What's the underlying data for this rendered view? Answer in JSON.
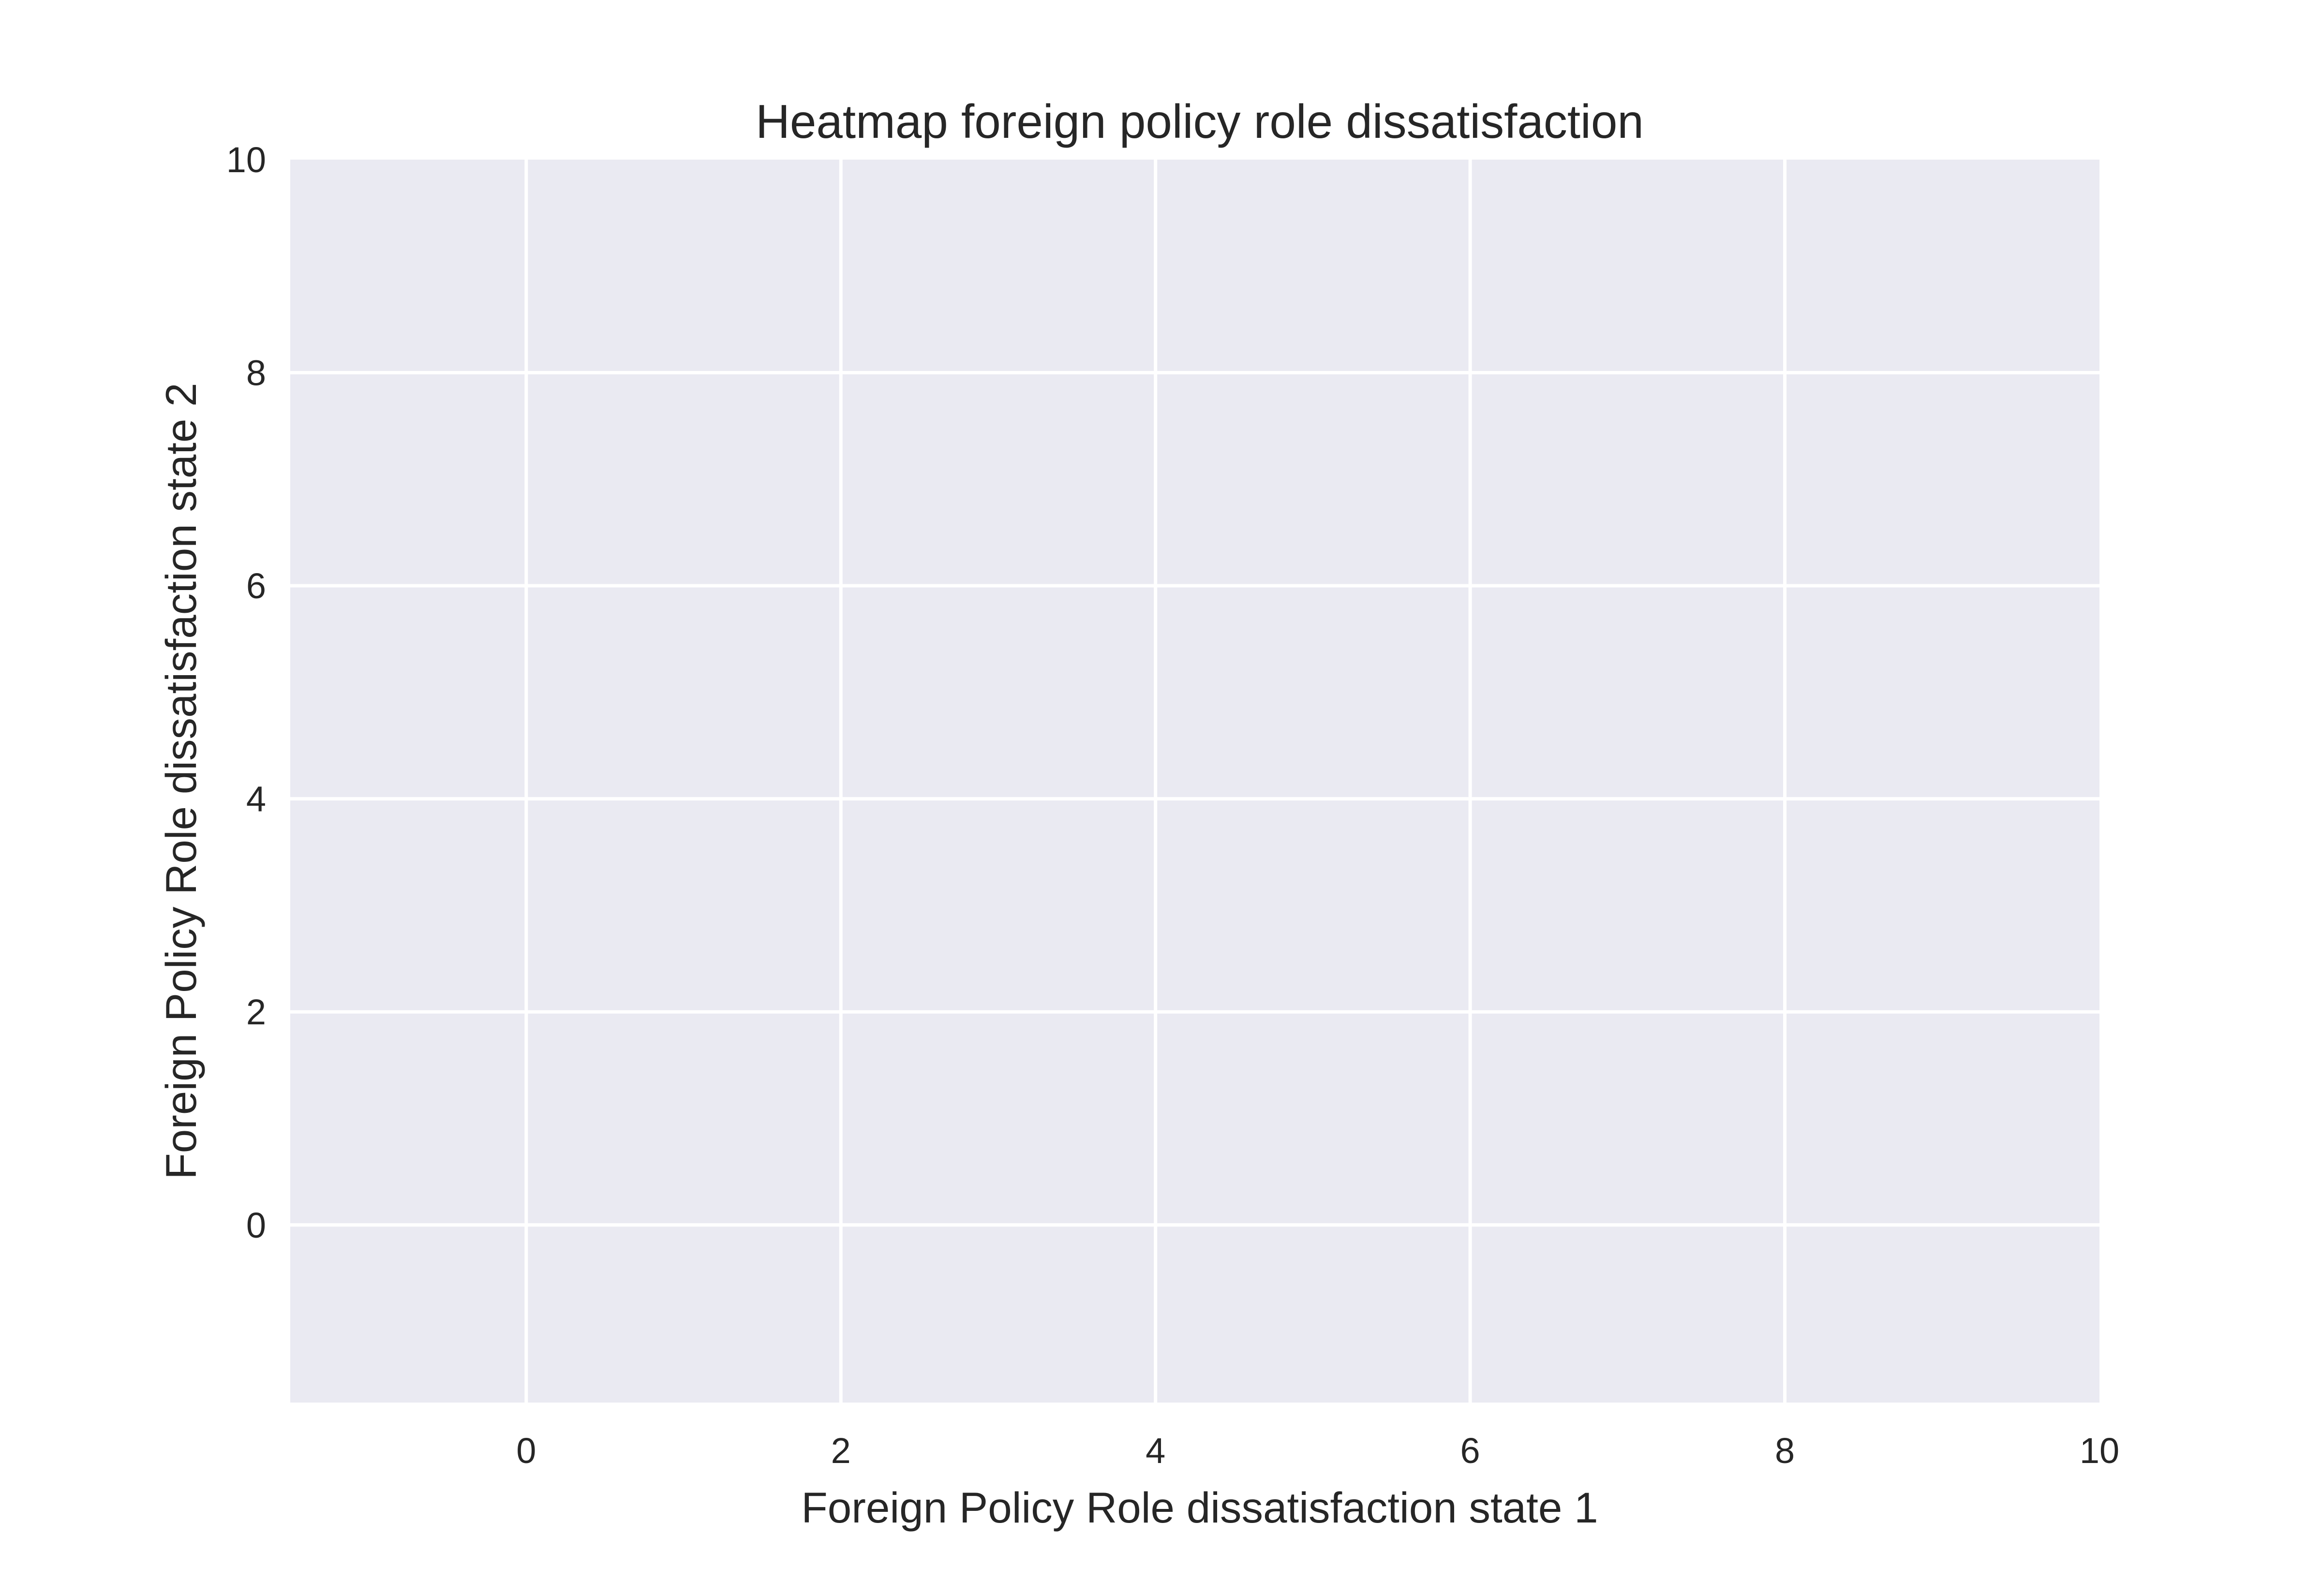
{
  "chart_data": {
    "type": "heatmap",
    "title": "Heatmap foreign policy role dissatisfaction",
    "xlabel": "Foreign Policy Role dissatisfaction state 1",
    "ylabel": "Foreign Policy Role dissatisfaction state 2",
    "xlim": [
      -1.5,
      10
    ],
    "ylim": [
      -1.667,
      10
    ],
    "xticks": [
      0,
      2,
      4,
      6,
      8,
      10
    ],
    "yticks": [
      0,
      2,
      4,
      6,
      8,
      10
    ],
    "xtick_labels": [
      "0",
      "2",
      "4",
      "6",
      "8",
      "10"
    ],
    "ytick_labels": [
      "0",
      "2",
      "4",
      "6",
      "8",
      "10"
    ],
    "grid": true,
    "values": [],
    "colors": {
      "plot_background": "#eaeaf2",
      "grid": "#ffffff",
      "text": "#262626"
    }
  }
}
